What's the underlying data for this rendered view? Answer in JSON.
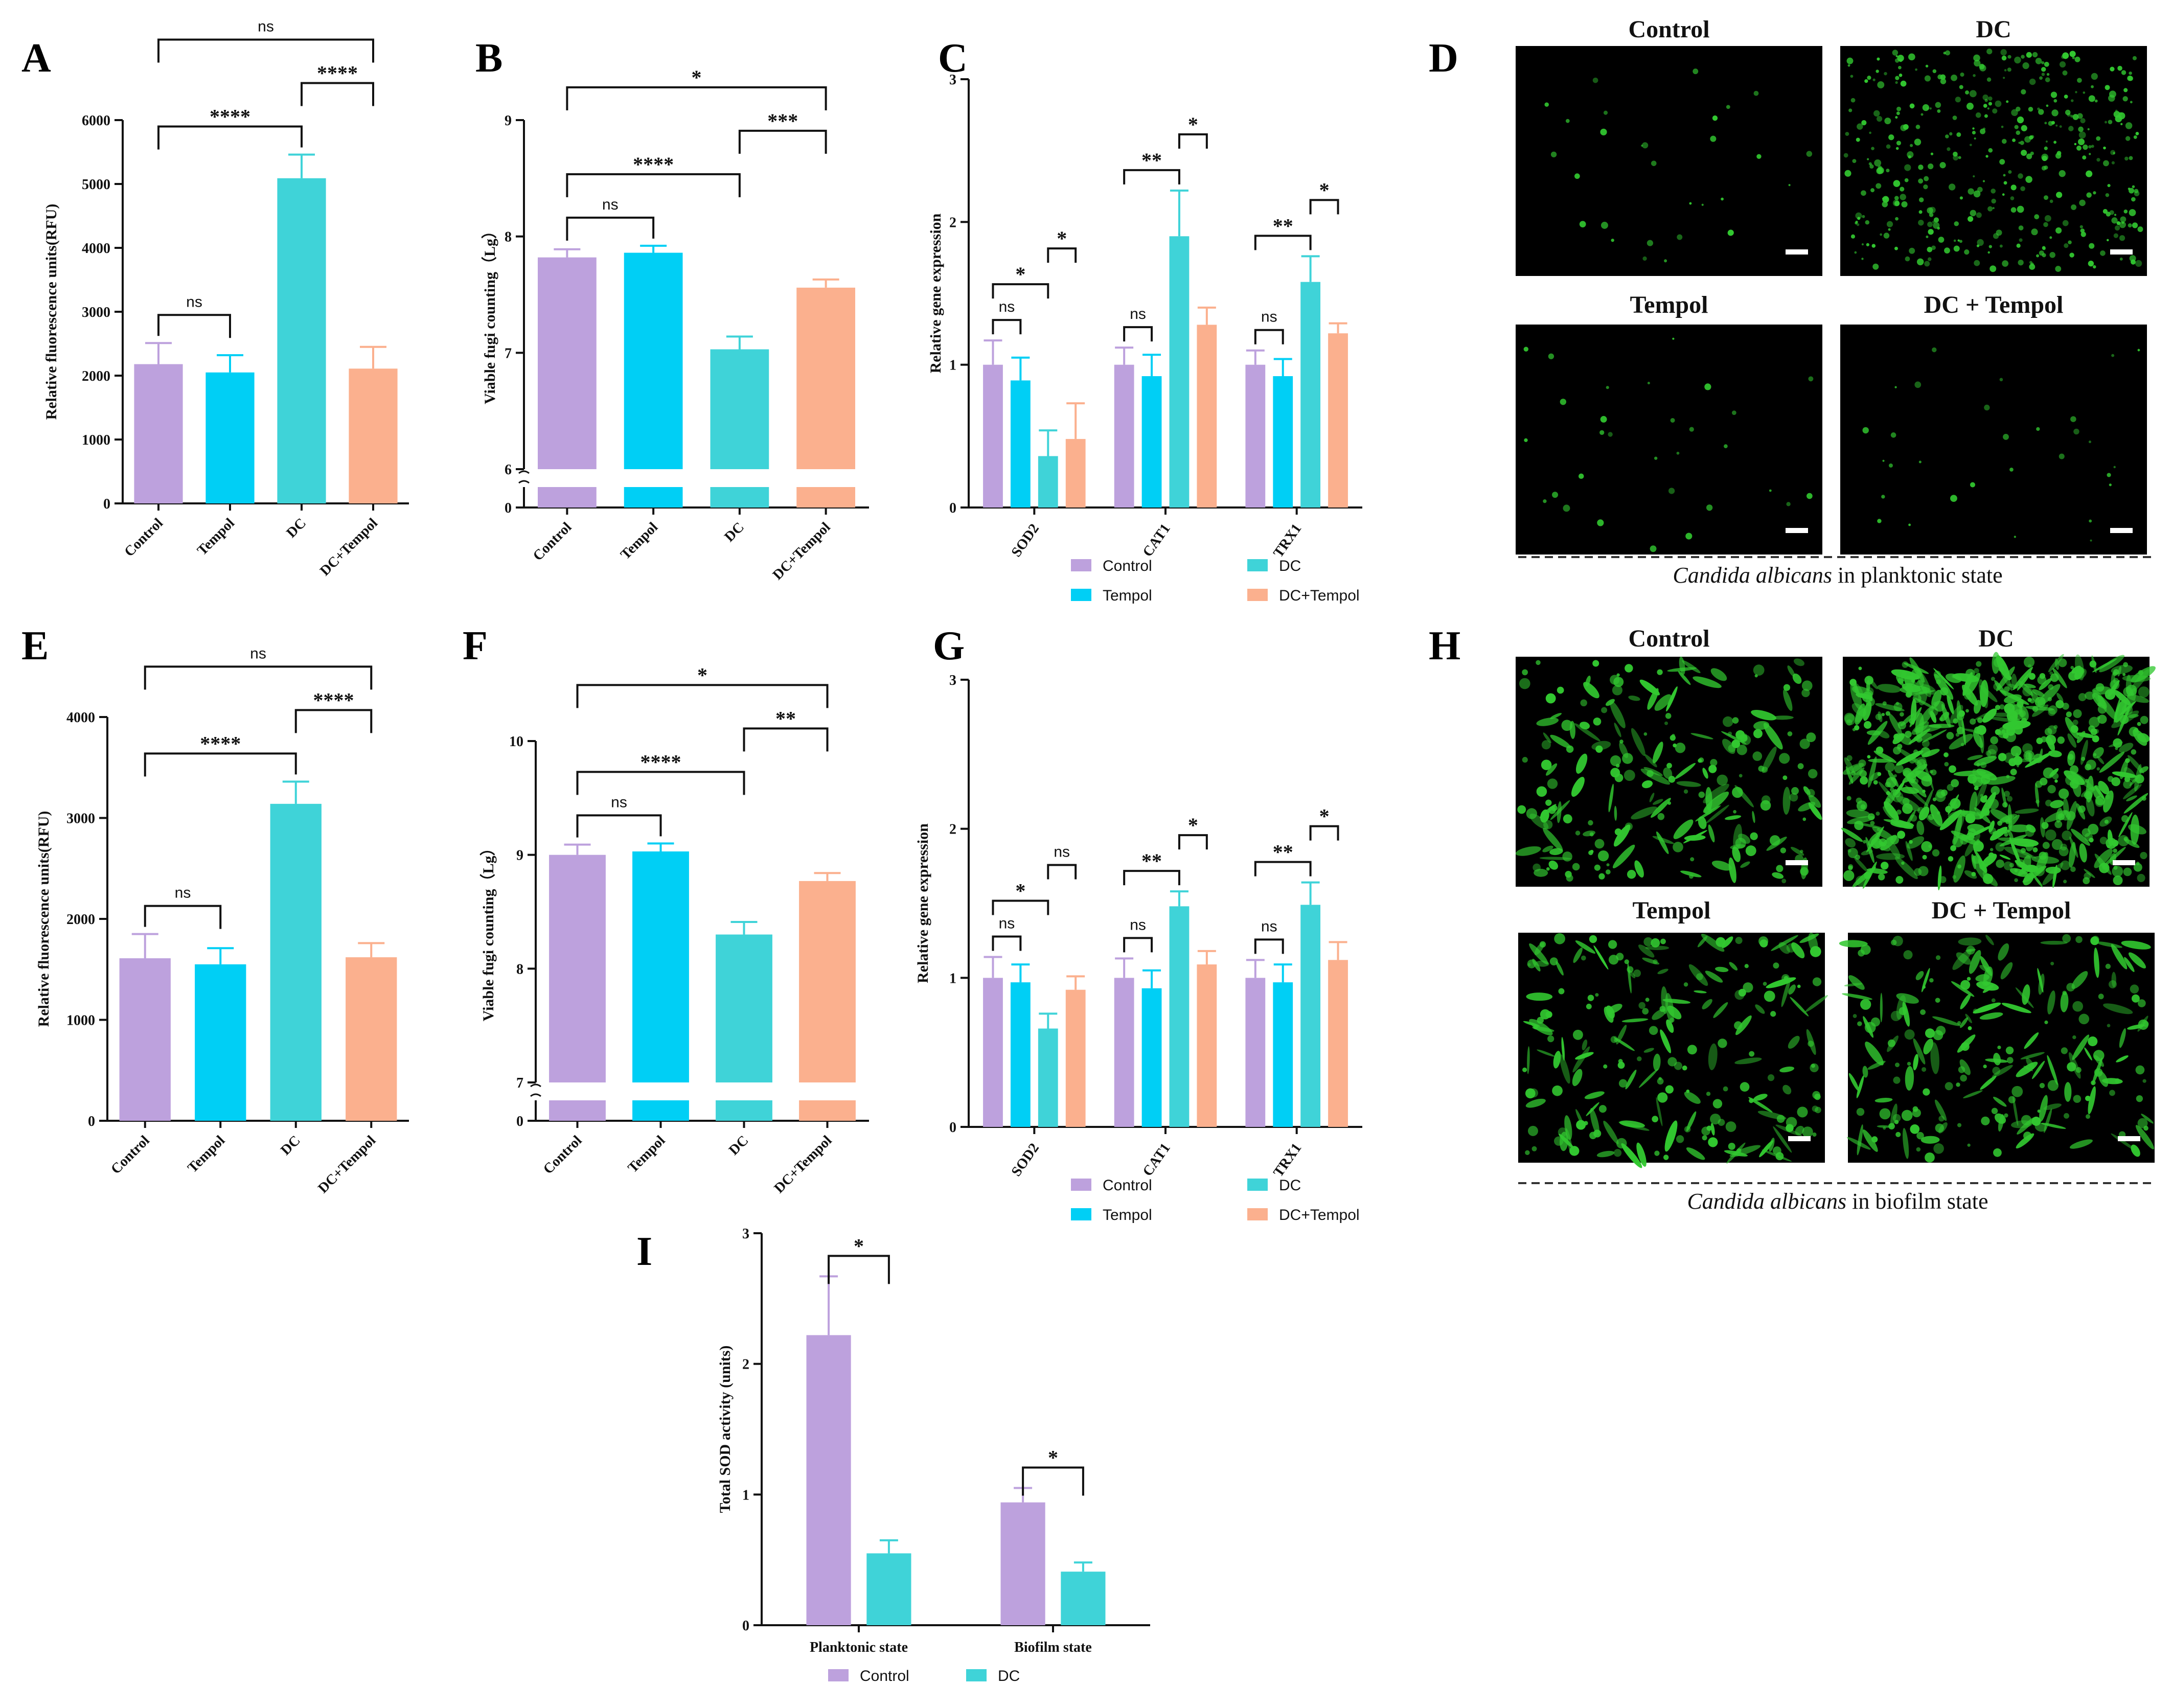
{
  "colors": {
    "Control": "#BDA1DD",
    "Tempol": "#00CFF5",
    "DC": "#3FD3D8",
    "DC+Tempol": "#FBB08E",
    "axis": "#111111",
    "micro_bg": "#000000",
    "cell": "#32C830"
  },
  "panel_letters": {
    "A": "A",
    "B": "B",
    "C": "C",
    "D": "D",
    "E": "E",
    "F": "F",
    "G": "G",
    "H": "H",
    "I": "I"
  },
  "chart_data": [
    {
      "id": "A",
      "type": "bar",
      "ylabel": "Relative fluorescence units(RFU)",
      "ylim": [
        0,
        6000
      ],
      "yticks": [
        0,
        1000,
        2000,
        3000,
        4000,
        5000,
        6000
      ],
      "categories": [
        "Control",
        "Tempol",
        "DC",
        "DC+Tempol"
      ],
      "values": [
        2180,
        2050,
        5090,
        2110
      ],
      "errors": [
        330,
        270,
        370,
        340
      ],
      "annotations": [
        {
          "a": 0,
          "b": 1,
          "label": "ns"
        },
        {
          "a": 0,
          "b": 2,
          "label": "****"
        },
        {
          "a": 2,
          "b": 3,
          "label": "****"
        },
        {
          "a": 0,
          "b": 3,
          "label": "ns"
        }
      ]
    },
    {
      "id": "B",
      "type": "bar",
      "ylabel": "Viable fugi counting（Lg）",
      "ylim": [
        0,
        9
      ],
      "yticks": [
        0,
        6,
        7,
        8,
        9
      ],
      "axis_break": [
        0.33,
        6
      ],
      "categories": [
        "Control",
        "Tempol",
        "DC",
        "DC+Tempol"
      ],
      "values": [
        7.82,
        7.86,
        7.03,
        7.56
      ],
      "errors": [
        0.07,
        0.06,
        0.11,
        0.07
      ],
      "annotations": [
        {
          "a": 0,
          "b": 1,
          "label": "ns"
        },
        {
          "a": 0,
          "b": 2,
          "label": "****"
        },
        {
          "a": 2,
          "b": 3,
          "label": "***"
        },
        {
          "a": 0,
          "b": 3,
          "label": "*"
        }
      ]
    },
    {
      "id": "C",
      "type": "grouped-bar",
      "ylabel": "Relative gene expression",
      "ylim": [
        0,
        3
      ],
      "yticks": [
        0,
        1,
        2,
        3
      ],
      "categories": [
        "SOD2",
        "CAT1",
        "TRX1"
      ],
      "series": [
        {
          "name": "Control",
          "values": [
            1.0,
            1.0,
            1.0
          ],
          "errors": [
            0.17,
            0.12,
            0.1
          ]
        },
        {
          "name": "Tempol",
          "values": [
            0.89,
            0.92,
            0.92
          ],
          "errors": [
            0.16,
            0.15,
            0.12
          ]
        },
        {
          "name": "DC",
          "values": [
            0.36,
            1.9,
            1.58
          ],
          "errors": [
            0.18,
            0.32,
            0.18
          ]
        },
        {
          "name": "DC+Tempol",
          "values": [
            0.48,
            1.28,
            1.22
          ],
          "errors": [
            0.25,
            0.12,
            0.07
          ]
        }
      ],
      "annotations": [
        {
          "g": 0,
          "a": 0,
          "b": 1,
          "label": "ns"
        },
        {
          "g": 0,
          "a": 0,
          "b": 2,
          "label": "*"
        },
        {
          "g": 0,
          "a": 2,
          "b": 3,
          "label": "*"
        },
        {
          "g": 1,
          "a": 0,
          "b": 1,
          "label": "ns"
        },
        {
          "g": 1,
          "a": 0,
          "b": 2,
          "label": "**"
        },
        {
          "g": 1,
          "a": 2,
          "b": 3,
          "label": "*"
        },
        {
          "g": 2,
          "a": 0,
          "b": 1,
          "label": "ns"
        },
        {
          "g": 2,
          "a": 0,
          "b": 2,
          "label": "**"
        },
        {
          "g": 2,
          "a": 2,
          "b": 3,
          "label": "*"
        }
      ],
      "legend": [
        "Control",
        "DC",
        "Tempol",
        "DC+Tempol"
      ]
    },
    {
      "id": "E",
      "type": "bar",
      "ylabel": "Relative fluorescence units(RFU)",
      "ylim": [
        0,
        4000
      ],
      "yticks": [
        0,
        1000,
        2000,
        3000,
        4000
      ],
      "categories": [
        "Control",
        "Tempol",
        "DC",
        "DC+Tempol"
      ],
      "values": [
        1610,
        1550,
        3140,
        1620
      ],
      "errors": [
        240,
        160,
        220,
        140
      ],
      "annotations": [
        {
          "a": 0,
          "b": 1,
          "label": "ns"
        },
        {
          "a": 0,
          "b": 2,
          "label": "****"
        },
        {
          "a": 2,
          "b": 3,
          "label": "****"
        },
        {
          "a": 0,
          "b": 3,
          "label": "ns"
        }
      ]
    },
    {
      "id": "F",
      "type": "bar",
      "ylabel": "Viable fugi counting（Lg）",
      "ylim": [
        0,
        10
      ],
      "yticks": [
        0,
        7,
        8,
        9,
        10
      ],
      "axis_break": [
        0.33,
        7
      ],
      "categories": [
        "Control",
        "Tempol",
        "DC",
        "DC+Tempol"
      ],
      "values": [
        9.0,
        9.03,
        8.3,
        8.77
      ],
      "errors": [
        0.09,
        0.07,
        0.11,
        0.07
      ],
      "annotations": [
        {
          "a": 0,
          "b": 1,
          "label": "ns"
        },
        {
          "a": 0,
          "b": 2,
          "label": "****"
        },
        {
          "a": 2,
          "b": 3,
          "label": "**"
        },
        {
          "a": 0,
          "b": 3,
          "label": "*"
        }
      ]
    },
    {
      "id": "G",
      "type": "grouped-bar",
      "ylabel": "Relative gene expression",
      "ylim": [
        0,
        3
      ],
      "yticks": [
        0,
        1,
        2,
        3
      ],
      "categories": [
        "SOD2",
        "CAT1",
        "TRX1"
      ],
      "series": [
        {
          "name": "Control",
          "values": [
            1.0,
            1.0,
            1.0
          ],
          "errors": [
            0.14,
            0.13,
            0.12
          ]
        },
        {
          "name": "Tempol",
          "values": [
            0.97,
            0.93,
            0.97
          ],
          "errors": [
            0.12,
            0.12,
            0.12
          ]
        },
        {
          "name": "DC",
          "values": [
            0.66,
            1.48,
            1.49
          ],
          "errors": [
            0.1,
            0.1,
            0.15
          ]
        },
        {
          "name": "DC+Tempol",
          "values": [
            0.92,
            1.09,
            1.12
          ],
          "errors": [
            0.09,
            0.09,
            0.12
          ]
        }
      ],
      "annotations": [
        {
          "g": 0,
          "a": 0,
          "b": 1,
          "label": "ns"
        },
        {
          "g": 0,
          "a": 0,
          "b": 2,
          "label": "*"
        },
        {
          "g": 0,
          "a": 2,
          "b": 3,
          "label": "ns"
        },
        {
          "g": 1,
          "a": 0,
          "b": 1,
          "label": "ns"
        },
        {
          "g": 1,
          "a": 0,
          "b": 2,
          "label": "**"
        },
        {
          "g": 1,
          "a": 2,
          "b": 3,
          "label": "*"
        },
        {
          "g": 2,
          "a": 0,
          "b": 1,
          "label": "ns"
        },
        {
          "g": 2,
          "a": 0,
          "b": 2,
          "label": "**"
        },
        {
          "g": 2,
          "a": 2,
          "b": 3,
          "label": "*"
        }
      ],
      "legend": [
        "Control",
        "DC",
        "Tempol",
        "DC+Tempol"
      ]
    },
    {
      "id": "I",
      "type": "grouped-bar",
      "ylabel": "Total SOD activity (units)",
      "ylim": [
        0,
        3
      ],
      "yticks": [
        0,
        1,
        2,
        3
      ],
      "categories": [
        "Planktonic state",
        "Biofilm state"
      ],
      "series": [
        {
          "name": "Control",
          "values": [
            2.22,
            0.94
          ],
          "errors": [
            0.45,
            0.11
          ]
        },
        {
          "name": "DC",
          "values": [
            0.55,
            0.41
          ],
          "errors": [
            0.1,
            0.07
          ]
        }
      ],
      "annotations": [
        {
          "g": 0,
          "a": 0,
          "b": 1,
          "label": "*"
        },
        {
          "g": 1,
          "a": 0,
          "b": 1,
          "label": "*"
        }
      ],
      "legend": [
        "Control",
        "DC"
      ]
    }
  ],
  "micrographs": {
    "D": {
      "caption_italic": "Candida albicans",
      "caption_rest": " in planktonic state",
      "tiles": [
        {
          "title": "Control",
          "density": "sparse"
        },
        {
          "title": "DC",
          "density": "dense"
        },
        {
          "title": "Tempol",
          "density": "sparse"
        },
        {
          "title": "DC + Tempol",
          "density": "sparse"
        }
      ]
    },
    "H": {
      "caption_italic": "Candida albicans",
      "caption_rest": " in biofilm state",
      "tiles": [
        {
          "title": "Control",
          "density": "medium"
        },
        {
          "title": "DC",
          "density": "very-dense"
        },
        {
          "title": "Tempol",
          "density": "medium"
        },
        {
          "title": "DC + Tempol",
          "density": "medium"
        }
      ]
    }
  }
}
